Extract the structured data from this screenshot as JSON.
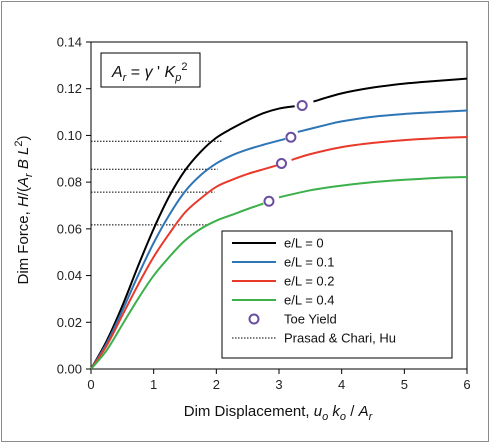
{
  "chart_data": {
    "type": "line",
    "xlabel": "Dim Displacement, u_o k_o / A_r",
    "ylabel": "Dim Force, H/(A_r B L^2)",
    "xlim": [
      0,
      6
    ],
    "ylim": [
      0,
      0.14
    ],
    "x_ticks": [
      "0",
      "1",
      "2",
      "3",
      "4",
      "5",
      "6"
    ],
    "y_ticks": [
      "0.00",
      "0.02",
      "0.04",
      "0.06",
      "0.08",
      "0.10",
      "0.12",
      "0.14"
    ],
    "grid": false,
    "legend_position": "bottom-right",
    "annotation": "A_r = γ' K_p^2",
    "series": [
      {
        "name": "e/L = 0",
        "color": "#000000",
        "segments": [
          [
            [
              0,
              0
            ],
            [
              0.25,
              0.012
            ],
            [
              0.5,
              0.027
            ],
            [
              0.75,
              0.044
            ],
            [
              1.0,
              0.06
            ],
            [
              1.25,
              0.074
            ],
            [
              1.5,
              0.085
            ],
            [
              1.75,
              0.093
            ],
            [
              2.0,
              0.099
            ],
            [
              2.25,
              0.103
            ],
            [
              2.5,
              0.1065
            ],
            [
              2.75,
              0.1095
            ],
            [
              3.0,
              0.1115
            ],
            [
              3.25,
              0.1125
            ]
          ],
          [
            [
              3.55,
              0.1145
            ],
            [
              4.0,
              0.118
            ],
            [
              4.5,
              0.1205
            ],
            [
              5.0,
              0.1222
            ],
            [
              5.5,
              0.1233
            ],
            [
              6.0,
              0.1243
            ]
          ]
        ]
      },
      {
        "name": "e/L = 0.1",
        "color": "#2e75b6",
        "segments": [
          [
            [
              0,
              0
            ],
            [
              0.25,
              0.011
            ],
            [
              0.5,
              0.025
            ],
            [
              0.75,
              0.04
            ],
            [
              1.0,
              0.054
            ],
            [
              1.25,
              0.066
            ],
            [
              1.5,
              0.076
            ],
            [
              1.75,
              0.083
            ],
            [
              2.0,
              0.088
            ],
            [
              2.25,
              0.0915
            ],
            [
              2.5,
              0.094
            ],
            [
              2.75,
              0.096
            ],
            [
              3.0,
              0.0978
            ],
            [
              3.1,
              0.0985
            ]
          ],
          [
            [
              3.3,
              0.1015
            ],
            [
              3.75,
              0.1045
            ],
            [
              4.0,
              0.106
            ],
            [
              4.5,
              0.108
            ],
            [
              5.0,
              0.1092
            ],
            [
              5.5,
              0.11
            ],
            [
              6.0,
              0.1107
            ]
          ]
        ]
      },
      {
        "name": "e/L = 0.2",
        "color": "#e8392a",
        "segments": [
          [
            [
              0,
              0
            ],
            [
              0.25,
              0.01
            ],
            [
              0.5,
              0.023
            ],
            [
              0.75,
              0.036
            ],
            [
              1.0,
              0.048
            ],
            [
              1.25,
              0.058
            ],
            [
              1.5,
              0.067
            ],
            [
              1.75,
              0.073
            ],
            [
              2.0,
              0.078
            ],
            [
              2.25,
              0.081
            ],
            [
              2.5,
              0.0835
            ],
            [
              2.75,
              0.0855
            ],
            [
              2.97,
              0.0872
            ]
          ],
          [
            [
              3.2,
              0.0895
            ],
            [
              3.5,
              0.092
            ],
            [
              4.0,
              0.095
            ],
            [
              4.5,
              0.0968
            ],
            [
              5.0,
              0.098
            ],
            [
              5.5,
              0.0988
            ],
            [
              6.0,
              0.0993
            ]
          ]
        ]
      },
      {
        "name": "e/L = 0.4",
        "color": "#3cb04a",
        "segments": [
          [
            [
              0,
              0
            ],
            [
              0.25,
              0.008
            ],
            [
              0.5,
              0.019
            ],
            [
              0.75,
              0.03
            ],
            [
              1.0,
              0.04
            ],
            [
              1.25,
              0.048
            ],
            [
              1.5,
              0.055
            ],
            [
              1.75,
              0.06
            ],
            [
              2.0,
              0.0635
            ],
            [
              2.25,
              0.066
            ],
            [
              2.5,
              0.0685
            ],
            [
              2.75,
              0.0708
            ]
          ],
          [
            [
              3.0,
              0.0735
            ],
            [
              3.5,
              0.0765
            ],
            [
              4.0,
              0.0785
            ],
            [
              4.5,
              0.08
            ],
            [
              5.0,
              0.081
            ],
            [
              5.5,
              0.0818
            ],
            [
              6.0,
              0.0822
            ]
          ]
        ]
      }
    ],
    "toe_yield": {
      "name": "Toe Yield",
      "color": "#6a4fa0",
      "points": [
        [
          3.37,
          0.1128
        ],
        [
          3.19,
          0.0992
        ],
        [
          3.04,
          0.088
        ],
        [
          2.84,
          0.0718
        ]
      ]
    },
    "reference": {
      "name": "Prasad & Chari, Hu",
      "color": "#000000",
      "lines": [
        {
          "y": 0.0975,
          "x_end": 2.08
        },
        {
          "y": 0.0855,
          "x_end": 2.02
        },
        {
          "y": 0.0757,
          "x_end": 1.97
        },
        {
          "y": 0.0617,
          "x_end": 1.88
        }
      ]
    }
  }
}
